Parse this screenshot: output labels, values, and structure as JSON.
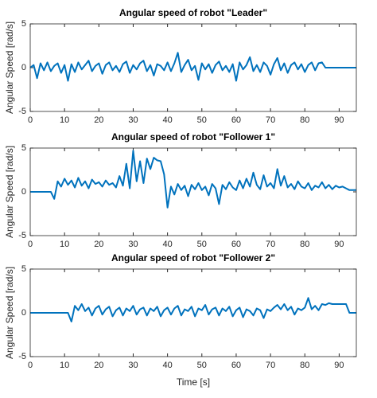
{
  "chart_data": [
    {
      "type": "line",
      "title": "Angular speed of robot \"Leader\"",
      "ylabel": "Angular Speed [rad/s]",
      "color": "#0072bd",
      "x": [
        0,
        1,
        2,
        3,
        4,
        5,
        6,
        7,
        8,
        9,
        10,
        11,
        12,
        13,
        14,
        15,
        16,
        17,
        18,
        19,
        20,
        21,
        22,
        23,
        24,
        25,
        26,
        27,
        28,
        29,
        30,
        31,
        32,
        33,
        34,
        35,
        36,
        37,
        38,
        39,
        40,
        41,
        42,
        43,
        44,
        45,
        46,
        47,
        48,
        49,
        50,
        51,
        52,
        53,
        54,
        55,
        56,
        57,
        58,
        59,
        60,
        61,
        62,
        63,
        64,
        65,
        66,
        67,
        68,
        69,
        70,
        71,
        72,
        73,
        74,
        75,
        76,
        77,
        78,
        79,
        80,
        81,
        82,
        83,
        84,
        85,
        86,
        87,
        88,
        89,
        90,
        91,
        92,
        93,
        94,
        95
      ],
      "values": [
        0,
        0.3,
        -1.2,
        0.5,
        -0.3,
        0.6,
        -0.4,
        0.2,
        0.5,
        -0.6,
        0.3,
        -1.5,
        0.4,
        -0.5,
        0.6,
        -0.2,
        0.3,
        0.8,
        -0.4,
        0.2,
        0.5,
        -0.7,
        0.3,
        0.6,
        -0.3,
        0.2,
        -0.5,
        0.4,
        0.7,
        -0.6,
        0.3,
        -0.2,
        0.5,
        0.8,
        -0.4,
        0.3,
        -0.9,
        0.4,
        0.2,
        -0.3,
        0.6,
        -0.4,
        0.5,
        1.7,
        -0.5,
        0.3,
        0.9,
        -0.3,
        0.2,
        -1.4,
        0.5,
        -0.2,
        0.4,
        -0.6,
        0.3,
        0.7,
        -0.3,
        0.2,
        -0.5,
        0.4,
        -1.5,
        0.6,
        -0.2,
        0.3,
        1.2,
        -0.4,
        0.3,
        -0.5,
        0.6,
        0.2,
        -0.8,
        0.4,
        1.1,
        -0.3,
        0.5,
        -0.6,
        0.3,
        0.6,
        -0.2,
        0.4,
        -0.5,
        0.3,
        0.6,
        -0.3,
        0.5,
        0.6,
        0,
        0,
        0,
        0,
        0,
        0,
        0,
        0,
        0,
        0
      ],
      "xlim": [
        0,
        95
      ],
      "xticks": [
        0,
        10,
        20,
        30,
        40,
        50,
        60,
        70,
        80,
        90
      ],
      "ylim": [
        -5,
        5
      ],
      "yticks": [
        -5,
        0,
        5
      ]
    },
    {
      "type": "line",
      "title": "Angular speed of robot \"Follower 1\"",
      "ylabel": "Angular Speed [rad/s]",
      "color": "#0072bd",
      "x": [
        0,
        1,
        2,
        3,
        4,
        5,
        6,
        7,
        8,
        9,
        10,
        11,
        12,
        13,
        14,
        15,
        16,
        17,
        18,
        19,
        20,
        21,
        22,
        23,
        24,
        25,
        26,
        27,
        28,
        29,
        30,
        31,
        32,
        33,
        34,
        35,
        36,
        37,
        38,
        39,
        40,
        41,
        42,
        43,
        44,
        45,
        46,
        47,
        48,
        49,
        50,
        51,
        52,
        53,
        54,
        55,
        56,
        57,
        58,
        59,
        60,
        61,
        62,
        63,
        64,
        65,
        66,
        67,
        68,
        69,
        70,
        71,
        72,
        73,
        74,
        75,
        76,
        77,
        78,
        79,
        80,
        81,
        82,
        83,
        84,
        85,
        86,
        87,
        88,
        89,
        90,
        91,
        92,
        93,
        94,
        95
      ],
      "values": [
        0,
        0,
        0,
        0,
        0,
        0,
        0,
        -0.8,
        1.2,
        0.6,
        1.5,
        0.8,
        1.3,
        0.5,
        1.6,
        0.7,
        1.2,
        0.4,
        1.4,
        0.9,
        1.1,
        0.6,
        1.3,
        0.8,
        1.0,
        0.5,
        1.8,
        0.7,
        3.2,
        0.4,
        4.7,
        1.2,
        3.5,
        1.0,
        3.8,
        2.6,
        3.9,
        3.6,
        3.5,
        2.0,
        -1.8,
        0.6,
        -0.3,
        0.9,
        0.2,
        0.7,
        -0.5,
        0.8,
        0.3,
        1.0,
        0.2,
        0.6,
        -0.4,
        0.9,
        0.4,
        -1.4,
        0.8,
        0.3,
        1.1,
        0.5,
        0.2,
        1.3,
        0.4,
        1.5,
        0.6,
        2.2,
        0.8,
        0.3,
        1.9,
        0.6,
        1.0,
        0.4,
        2.6,
        0.7,
        1.8,
        0.5,
        0.9,
        0.3,
        1.2,
        0.6,
        0.4,
        1.0,
        0.2,
        0.7,
        0.5,
        1.1,
        0.4,
        0.8,
        0.3,
        0.7,
        0.5,
        0.6,
        0.4,
        0.2,
        0.2,
        0.2
      ],
      "xlim": [
        0,
        95
      ],
      "xticks": [
        0,
        10,
        20,
        30,
        40,
        50,
        60,
        70,
        80,
        90
      ],
      "ylim": [
        -5,
        5
      ],
      "yticks": [
        -5,
        0,
        5
      ]
    },
    {
      "type": "line",
      "title": "Angular speed of robot \"Follower 2\"",
      "ylabel": "Angular Speed [rad/s]",
      "xlabel": "Time [s]",
      "color": "#0072bd",
      "x": [
        0,
        1,
        2,
        3,
        4,
        5,
        6,
        7,
        8,
        9,
        10,
        11,
        12,
        13,
        14,
        15,
        16,
        17,
        18,
        19,
        20,
        21,
        22,
        23,
        24,
        25,
        26,
        27,
        28,
        29,
        30,
        31,
        32,
        33,
        34,
        35,
        36,
        37,
        38,
        39,
        40,
        41,
        42,
        43,
        44,
        45,
        46,
        47,
        48,
        49,
        50,
        51,
        52,
        53,
        54,
        55,
        56,
        57,
        58,
        59,
        60,
        61,
        62,
        63,
        64,
        65,
        66,
        67,
        68,
        69,
        70,
        71,
        72,
        73,
        74,
        75,
        76,
        77,
        78,
        79,
        80,
        81,
        82,
        83,
        84,
        85,
        86,
        87,
        88,
        89,
        90,
        91,
        92,
        93,
        94,
        95
      ],
      "values": [
        0,
        0,
        0,
        0,
        0,
        0,
        0,
        0,
        0,
        0,
        0,
        0,
        -1.0,
        0.8,
        0.3,
        1.0,
        0.2,
        0.6,
        -0.3,
        0.5,
        0.8,
        -0.2,
        0.4,
        0.7,
        -0.4,
        0.3,
        0.6,
        -0.3,
        0.5,
        0.2,
        0.8,
        -0.2,
        0.4,
        0.6,
        -0.3,
        0.5,
        0.2,
        0.7,
        -0.4,
        0.3,
        0.6,
        -0.2,
        0.5,
        0.8,
        -0.3,
        0.4,
        0.2,
        0.7,
        -0.4,
        0.5,
        0.3,
        0.9,
        -0.2,
        0.4,
        0.6,
        -0.3,
        0.5,
        0.2,
        0.7,
        -0.4,
        0.3,
        0.6,
        -0.5,
        0.4,
        0.2,
        -0.3,
        0.5,
        0.3,
        -0.6,
        0.4,
        0.2,
        0.6,
        0.9,
        0.4,
        1.0,
        0.3,
        0.7,
        -0.2,
        0.5,
        0.3,
        0.6,
        1.7,
        0.4,
        0.8,
        0.3,
        1.0,
        0.9,
        1.1,
        1.0,
        1.0,
        1.0,
        1.0,
        1.0,
        0,
        0,
        0
      ],
      "xlim": [
        0,
        95
      ],
      "xticks": [
        0,
        10,
        20,
        30,
        40,
        50,
        60,
        70,
        80,
        90
      ],
      "ylim": [
        -5,
        5
      ],
      "yticks": [
        -5,
        0,
        5
      ]
    }
  ]
}
